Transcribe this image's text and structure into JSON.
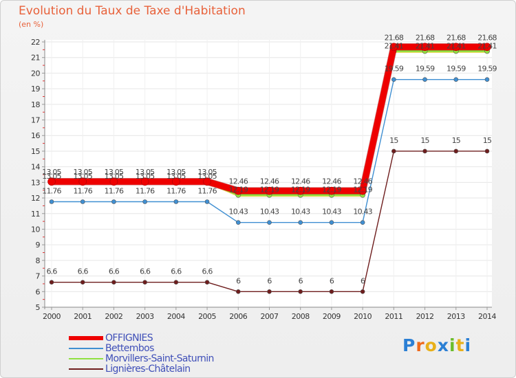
{
  "chart_data": {
    "type": "line",
    "title": "Evolution du Taux de Taxe d'Habitation",
    "ylabel": "(en %)",
    "xlabel": "",
    "ylim": [
      5,
      22
    ],
    "yticks": [
      "5",
      "6",
      "7",
      "8",
      "9",
      "10",
      "11",
      "12",
      "13",
      "14",
      "15",
      "16",
      "17",
      "18",
      "19",
      "20",
      "21",
      "22"
    ],
    "x": [
      "2000",
      "2001",
      "2002",
      "2003",
      "2004",
      "2005",
      "2006",
      "2007",
      "2008",
      "2009",
      "2010",
      "2011",
      "2012",
      "2013",
      "2014"
    ],
    "series": [
      {
        "name": "Lignières-Châtelain",
        "color": "#6e1d1d",
        "values": [
          6.6,
          6.6,
          6.6,
          6.6,
          6.6,
          6.6,
          6,
          6,
          6,
          6,
          6,
          15,
          15,
          15,
          15
        ],
        "labels": [
          "6.6",
          "6.6",
          "6.6",
          "6.6",
          "6.6",
          "6.6",
          "6",
          "6",
          "6",
          "6",
          "6",
          "15",
          "15",
          "15",
          "15"
        ]
      },
      {
        "name": "Bettembos",
        "color": "#3f8fd2",
        "values": [
          11.76,
          11.76,
          11.76,
          11.76,
          11.76,
          11.76,
          10.43,
          10.43,
          10.43,
          10.43,
          10.43,
          19.59,
          19.59,
          19.59,
          19.59
        ],
        "labels": [
          "11.76",
          "11.76",
          "11.76",
          "11.76",
          "11.76",
          "11.76",
          "10.43",
          "10.43",
          "10.43",
          "10.43",
          "10.43",
          "19.59",
          "19.59",
          "19.59",
          "19.59"
        ]
      },
      {
        "name": "Morvillers-Saint-Saturnin",
        "color": "#90e040",
        "values": [
          13.05,
          13.05,
          13.05,
          13.05,
          13.05,
          13.05,
          12.19,
          12.19,
          12.19,
          12.19,
          12.19,
          21.41,
          21.41,
          21.41,
          21.41
        ],
        "labels": [
          "13.05",
          "13.05",
          "13.05",
          "13.05",
          "13.05",
          "13.05",
          "12.19",
          "12.19",
          "12.19",
          "12.19",
          "12.19",
          "21.41",
          "21.41",
          "21.41",
          "21.41"
        ]
      },
      {
        "name": "OFFIGNIES",
        "color": "#ee0000",
        "values": [
          13.05,
          13.05,
          13.05,
          13.05,
          13.05,
          13.05,
          12.46,
          12.46,
          12.46,
          12.46,
          12.46,
          21.68,
          21.68,
          21.68,
          21.68
        ],
        "labels": [
          "13.05",
          "13.05",
          "13.05",
          "13.05",
          "13.05",
          "13.05",
          "12.46",
          "12.46",
          "12.46",
          "12.46",
          "12.46",
          "21.68",
          "21.68",
          "21.68",
          "21.68"
        ]
      }
    ],
    "legend": [
      "OFFIGNIES",
      "Bettembos",
      "Morvillers-Saint-Saturnin",
      "Lignières-Châtelain"
    ],
    "legend_position": "bottom-left",
    "grid": true
  },
  "legend_colors": [
    "#ee0000",
    "#3f8fd2",
    "#90e040",
    "#6e1d1d"
  ],
  "logo": {
    "text_parts": [
      "P",
      "r",
      "o",
      "x",
      "i",
      "t",
      "i"
    ],
    "colors": [
      "#2b7fd4",
      "#ee6a1c",
      "#e8b01a",
      "#2b7fd4",
      "#6bbd2a",
      "#e8b01a",
      "#2b7fd4"
    ]
  }
}
